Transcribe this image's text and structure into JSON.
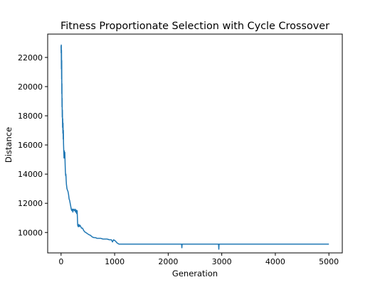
{
  "chart_data": {
    "type": "line",
    "title": "Fitness Proportionate Selection with Cycle Crossover",
    "xlabel": "Generation",
    "ylabel": "Distance",
    "xlim": [
      -250,
      5250
    ],
    "ylim": [
      8600,
      23600
    ],
    "xticks": [
      0,
      1000,
      2000,
      3000,
      4000,
      5000
    ],
    "yticks": [
      10000,
      12000,
      14000,
      16000,
      18000,
      20000,
      22000
    ],
    "grid": false,
    "legend": "none",
    "series": [
      {
        "color": "#1f77b4",
        "x": [
          0,
          2,
          4,
          6,
          8,
          10,
          12,
          14,
          16,
          18,
          20,
          22,
          25,
          28,
          31,
          34,
          37,
          40,
          43,
          46,
          50,
          55,
          60,
          65,
          70,
          75,
          80,
          85,
          90,
          95,
          100,
          110,
          120,
          130,
          140,
          150,
          160,
          170,
          180,
          190,
          200,
          210,
          220,
          230,
          240,
          250,
          260,
          270,
          280,
          290,
          300,
          310,
          320,
          330,
          340,
          350,
          360,
          380,
          400,
          420,
          440,
          460,
          480,
          500,
          520,
          550,
          580,
          610,
          640,
          670,
          700,
          740,
          780,
          820,
          860,
          900,
          940,
          960,
          980,
          1000,
          1020,
          1040,
          1060,
          1080,
          1100,
          1120,
          1150,
          1200,
          1300,
          1500,
          1700,
          1900,
          2100,
          2250,
          2255,
          2260,
          2270,
          2500,
          2700,
          2900,
          2940,
          2945,
          2950,
          2960,
          3200,
          3500,
          4000,
          4500,
          5000
        ],
        "values": [
          22800,
          22300,
          22850,
          21200,
          22500,
          20500,
          21800,
          19500,
          20200,
          18600,
          19200,
          17900,
          18400,
          17200,
          17800,
          16800,
          17500,
          16400,
          17000,
          16100,
          15600,
          15100,
          15600,
          15300,
          15500,
          14800,
          14200,
          13900,
          14000,
          13600,
          13300,
          13000,
          12900,
          12800,
          12600,
          12300,
          12200,
          12000,
          11800,
          11600,
          11500,
          11600,
          11400,
          11600,
          11550,
          11500,
          11600,
          11400,
          11550,
          11300,
          11500,
          10500,
          10400,
          10550,
          10400,
          10500,
          10450,
          10300,
          10300,
          10150,
          10050,
          10000,
          9950,
          9900,
          9850,
          9800,
          9700,
          9650,
          9650,
          9600,
          9600,
          9600,
          9550,
          9550,
          9550,
          9500,
          9500,
          9350,
          9500,
          9450,
          9400,
          9300,
          9250,
          9200,
          9200,
          9200,
          9200,
          9200,
          9200,
          9200,
          9200,
          9200,
          9200,
          9200,
          8950,
          9200,
          9200,
          9200,
          9200,
          9200,
          9200,
          8850,
          9200,
          9200,
          9200,
          9200,
          9200,
          9200,
          9200
        ]
      }
    ]
  }
}
